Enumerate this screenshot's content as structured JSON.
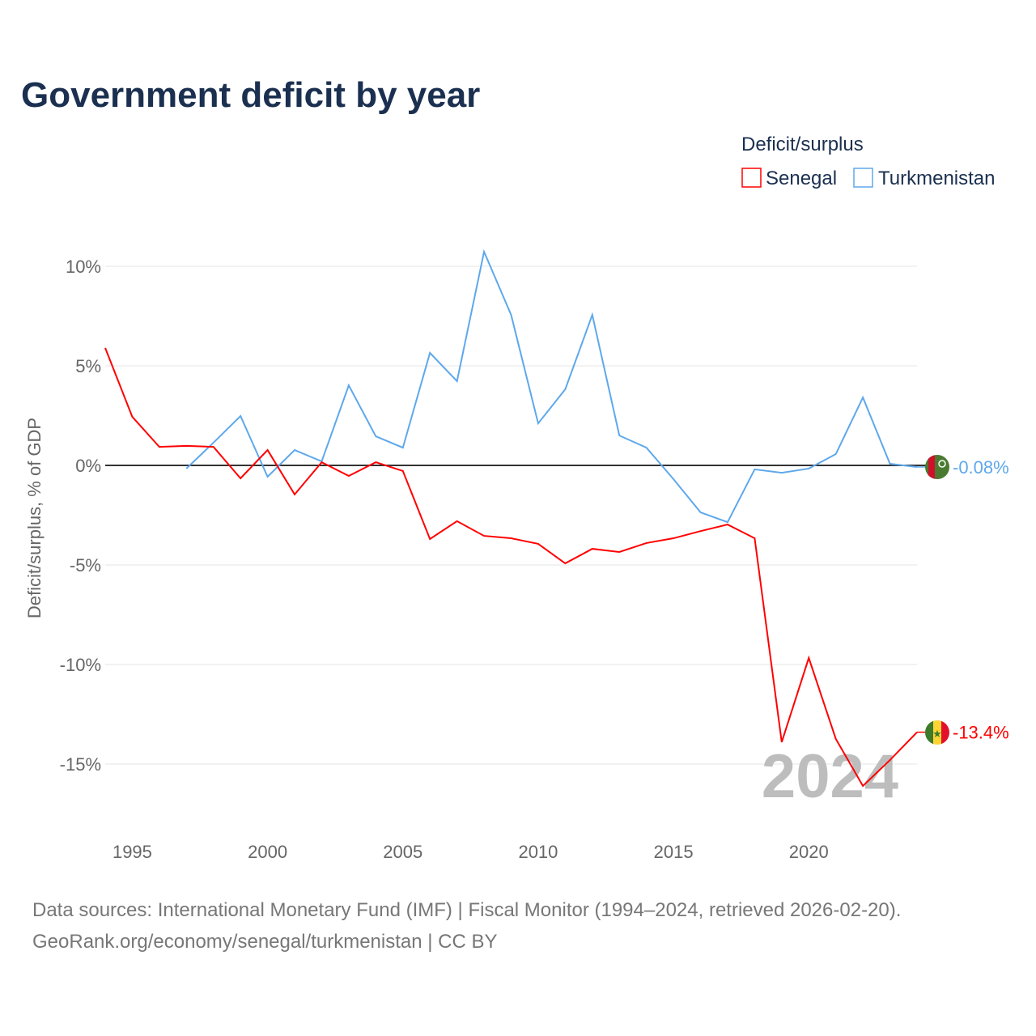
{
  "chart_data": {
    "type": "line",
    "title": "Government deficit by year",
    "ylabel": "Deficit/surplus, % of GDP",
    "xlabel": "",
    "legend_title": "Deficit/surplus",
    "legend_position": "top-right",
    "ylim": [
      -17.5,
      12
    ],
    "xlim": [
      1994,
      2024
    ],
    "yticks": [
      10,
      5,
      0,
      -5,
      -10,
      -15
    ],
    "ytick_labels": [
      "10%",
      "5%",
      "0%",
      "-5%",
      "-10%",
      "-15%"
    ],
    "xticks": [
      1995,
      2000,
      2005,
      2010,
      2015,
      2020
    ],
    "xtick_labels": [
      "1995",
      "2000",
      "2005",
      "2010",
      "2015",
      "2020"
    ],
    "year_watermark": "2024",
    "series": [
      {
        "name": "Senegal",
        "color": "#ff0000",
        "end_label": "-13.4%",
        "flag": "senegal-flag",
        "x": [
          1994,
          1995,
          1996,
          1997,
          1998,
          1999,
          2000,
          2001,
          2002,
          2003,
          2004,
          2005,
          2006,
          2007,
          2008,
          2009,
          2010,
          2011,
          2012,
          2013,
          2014,
          2015,
          2016,
          2017,
          2018,
          2019,
          2020,
          2021,
          2022,
          2023,
          2024
        ],
        "values": [
          5.9,
          2.44,
          0.93,
          0.98,
          0.93,
          -0.65,
          0.77,
          -1.46,
          0.16,
          -0.53,
          0.16,
          -0.28,
          -3.7,
          -2.8,
          -3.54,
          -3.66,
          -3.94,
          -4.92,
          -4.19,
          -4.35,
          -3.9,
          -3.66,
          -3.3,
          -2.97,
          -3.66,
          -13.9,
          -9.67,
          -13.74,
          -16.1,
          -14.8,
          -13.4
        ]
      },
      {
        "name": "Turkmenistan",
        "color": "#5ea8ec",
        "end_label": "-0.08%",
        "flag": "turkmenistan-flag",
        "x": [
          1997,
          1998,
          1999,
          2000,
          2001,
          2002,
          2003,
          2004,
          2005,
          2006,
          2007,
          2008,
          2009,
          2010,
          2011,
          2012,
          2013,
          2014,
          2015,
          2016,
          2017,
          2018,
          2019,
          2020,
          2021,
          2022,
          2023,
          2024
        ],
        "values": [
          -0.16,
          1.14,
          2.48,
          -0.57,
          0.77,
          0.2,
          4.02,
          1.46,
          0.89,
          5.65,
          4.23,
          10.73,
          7.56,
          2.11,
          3.82,
          7.56,
          1.5,
          0.89,
          -0.69,
          -2.36,
          -2.85,
          -0.2,
          -0.37,
          -0.16,
          0.57,
          3.41,
          0.08,
          -0.08
        ]
      }
    ]
  },
  "footer": {
    "line1": "Data sources: International Monetary Fund (IMF) | Fiscal Monitor (1994–2024, retrieved 2026-02-20).",
    "line2": "GeoRank.org/economy/senegal/turkmenistan | CC BY"
  }
}
